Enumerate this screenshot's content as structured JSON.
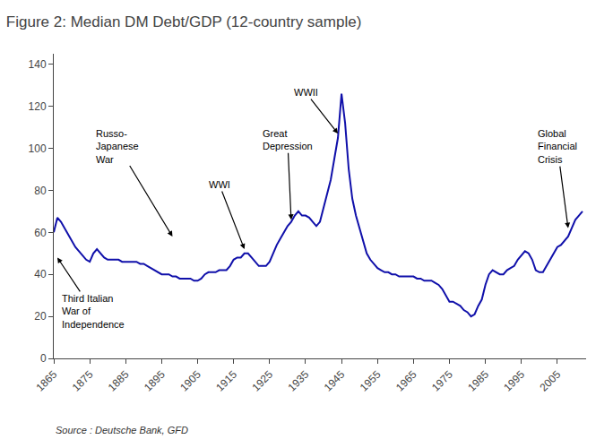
{
  "chart_data": {
    "type": "line",
    "title": "Figure 2: Median DM Debt/GDP (12-country sample)",
    "color": "#1010AA",
    "grid": false,
    "xlim": [
      1865,
      2013
    ],
    "ylim": [
      0,
      145
    ],
    "xticks": [
      1865,
      1875,
      1885,
      1895,
      1905,
      1915,
      1925,
      1935,
      1945,
      1955,
      1965,
      1975,
      1985,
      1995,
      2005
    ],
    "yticks": [
      0,
      20,
      40,
      60,
      80,
      100,
      120,
      140
    ],
    "x": [
      1865,
      1866,
      1867,
      1868,
      1869,
      1870,
      1871,
      1872,
      1873,
      1874,
      1875,
      1876,
      1877,
      1878,
      1879,
      1880,
      1881,
      1882,
      1883,
      1884,
      1885,
      1886,
      1887,
      1888,
      1889,
      1890,
      1891,
      1892,
      1893,
      1894,
      1895,
      1896,
      1897,
      1898,
      1899,
      1900,
      1901,
      1902,
      1903,
      1904,
      1905,
      1906,
      1907,
      1908,
      1909,
      1910,
      1911,
      1912,
      1913,
      1914,
      1915,
      1916,
      1917,
      1918,
      1919,
      1920,
      1921,
      1922,
      1923,
      1924,
      1925,
      1926,
      1927,
      1928,
      1929,
      1930,
      1931,
      1932,
      1933,
      1934,
      1935,
      1936,
      1937,
      1938,
      1939,
      1940,
      1941,
      1942,
      1943,
      1944,
      1945,
      1946,
      1947,
      1948,
      1949,
      1950,
      1951,
      1952,
      1953,
      1954,
      1955,
      1956,
      1957,
      1958,
      1959,
      1960,
      1961,
      1962,
      1963,
      1964,
      1965,
      1966,
      1967,
      1968,
      1969,
      1970,
      1971,
      1972,
      1973,
      1974,
      1975,
      1976,
      1977,
      1978,
      1979,
      1980,
      1981,
      1982,
      1983,
      1984,
      1985,
      1986,
      1987,
      1988,
      1989,
      1990,
      1991,
      1992,
      1993,
      1994,
      1995,
      1996,
      1997,
      1998,
      1999,
      2000,
      2001,
      2002,
      2003,
      2004,
      2005,
      2006,
      2007,
      2008,
      2009,
      2010,
      2011,
      2012
    ],
    "values": [
      60,
      67,
      65,
      62,
      59,
      56,
      53,
      51,
      49,
      47,
      46,
      50,
      52,
      50,
      48,
      47,
      47,
      47,
      47,
      46,
      46,
      46,
      46,
      46,
      45,
      45,
      44,
      43,
      42,
      41,
      40,
      40,
      40,
      39,
      39,
      38,
      38,
      38,
      38,
      37,
      37,
      38,
      40,
      41,
      41,
      41,
      42,
      42,
      42,
      44,
      47,
      48,
      48,
      50,
      50,
      48,
      46,
      44,
      44,
      44,
      46,
      50,
      54,
      57,
      60,
      63,
      65,
      68,
      70,
      68,
      68,
      67,
      65,
      63,
      65,
      72,
      78,
      85,
      95,
      105,
      126,
      112,
      90,
      76,
      68,
      62,
      55,
      50,
      47,
      45,
      43,
      42,
      41,
      41,
      40,
      40,
      39,
      39,
      39,
      39,
      39,
      38,
      38,
      37,
      37,
      37,
      36,
      35,
      33,
      30,
      27,
      27,
      26,
      25,
      23,
      22,
      20,
      21,
      25,
      28,
      35,
      40,
      42,
      41,
      40,
      40,
      42,
      43,
      44,
      47,
      49,
      51,
      50,
      47,
      42,
      41,
      41,
      44,
      47,
      50,
      53,
      54,
      56,
      58,
      62,
      66,
      68,
      70
    ],
    "annotations": [
      {
        "text": "Third Italian\nWar of\nIndependence",
        "x": 1866,
        "y": 48
      },
      {
        "text": "Russo-\nJapanese\nWar",
        "x": 1898,
        "y": 58
      },
      {
        "text": "WWI",
        "x": 1918,
        "y": 52
      },
      {
        "text": "Great\nDepression",
        "x": 1931,
        "y": 66
      },
      {
        "text": "WWII",
        "x": 1944,
        "y": 107
      },
      {
        "text": "Global\nFinancial\nCrisis",
        "x": 2008,
        "y": 62
      },
      {
        "text": "Source : Deutsche Bank, GFD"
      }
    ]
  }
}
